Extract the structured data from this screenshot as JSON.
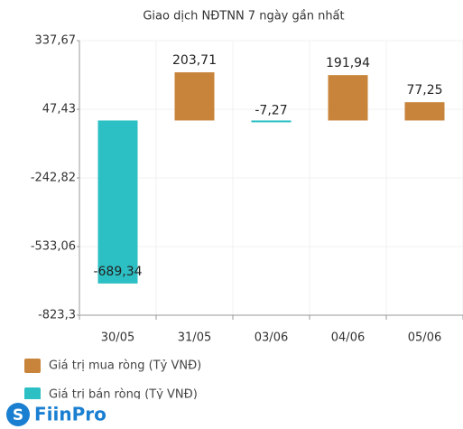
{
  "chart_data": {
    "type": "bar",
    "title": "Giao dịch NĐTNN 7 ngày gần nhất",
    "categories": [
      "30/05",
      "31/05",
      "03/06",
      "04/06",
      "05/06"
    ],
    "series": [
      {
        "name": "Giá trị mua ròng (Tỷ VNĐ)",
        "color": "#c8843a",
        "values": [
          null,
          203.71,
          null,
          191.94,
          77.25
        ],
        "value_labels": [
          null,
          "203,71",
          null,
          "191,94",
          "77,25"
        ]
      },
      {
        "name": "Giá trị bán ròng (Tỷ VNĐ)",
        "color": "#2cbfc4",
        "values": [
          -689.34,
          null,
          -7.27,
          null,
          null
        ],
        "value_labels": [
          "-689,34",
          null,
          "-7,27",
          null,
          null
        ]
      }
    ],
    "ylim": [
      -823.3,
      337.67
    ],
    "yticks": [
      {
        "value": 337.67,
        "label": "337,67"
      },
      {
        "value": 47.43,
        "label": "47,43"
      },
      {
        "value": -242.82,
        "label": "-242,82"
      },
      {
        "value": -533.06,
        "label": "-533,06"
      },
      {
        "value": -823.3,
        "label": "-823,3"
      }
    ],
    "grid": true,
    "legend": "bottom",
    "brand": "FiinPro"
  }
}
